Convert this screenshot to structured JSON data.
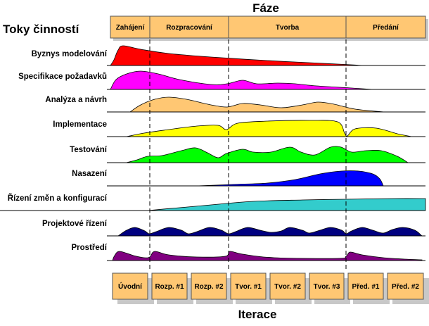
{
  "title_phases": "Fáze",
  "title_workflows": "Toky činností",
  "title_iterations": "Iterace",
  "phases": [
    "Zahájení",
    "Rozpracování",
    "Tvorba",
    "Předání"
  ],
  "workflows": [
    {
      "label": "Byznys modelování",
      "color": "#ff0000"
    },
    {
      "label": "Specifikace požadavků",
      "color": "#ff00ff"
    },
    {
      "label": "Analýza a návrh",
      "color": "#ffc773"
    },
    {
      "label": "Implementace",
      "color": "#ffff00"
    },
    {
      "label": "Testování",
      "color": "#00ff00"
    },
    {
      "label": "Nasazení",
      "color": "#0000ff"
    },
    {
      "label": "Řízení změn a konfigurací",
      "color": "#33cccc"
    },
    {
      "label": "Projektové řízení",
      "color": "#000080"
    },
    {
      "label": "Prostředí",
      "color": "#800080"
    }
  ],
  "iterations": [
    "Úvodní",
    "Rozp. #1",
    "Rozp. #2",
    "Tvor. #1",
    "Tvor. #2",
    "Tvor. #3",
    "Před. #1",
    "Před. #2"
  ],
  "box_color": "#ffc773"
}
